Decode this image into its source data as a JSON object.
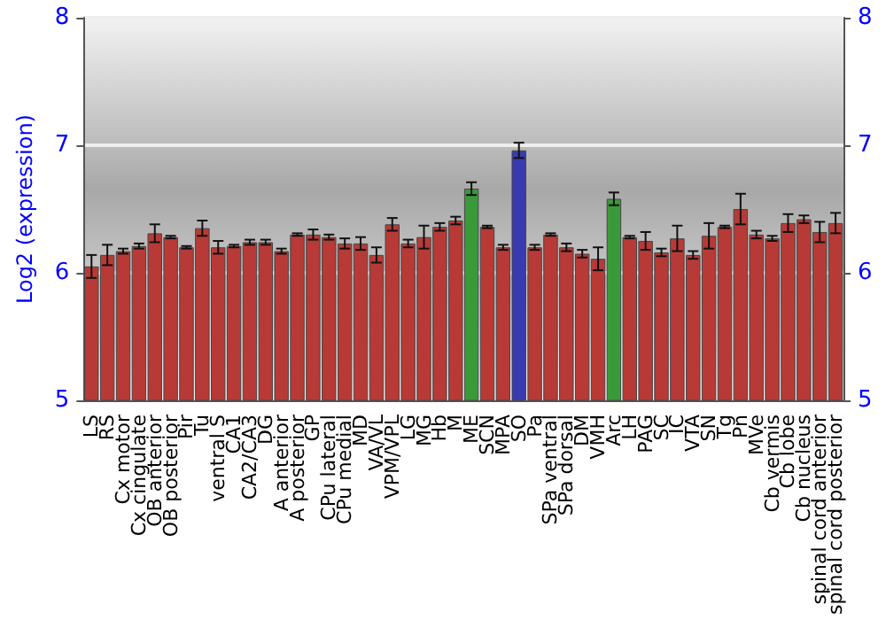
{
  "chart_data": {
    "type": "bar",
    "ylabel": "Log2 (expression)",
    "categories": [
      "LS",
      "RS",
      "Cx motor",
      "Cx cingulate",
      "OB anterior",
      "OB posterior",
      "Pir",
      "Tu",
      "ventral S",
      "CA1",
      "CA2/CA3",
      "DG",
      "A anterior",
      "A posterior",
      "GP",
      "CPu lateral",
      "CPu medial",
      "MD",
      "VA/VL",
      "VPM/VPL",
      "LG",
      "MG",
      "Hb",
      "M",
      "ME",
      "SCN",
      "MPA",
      "SO",
      "Pa",
      "SPa ventral",
      "SPa dorsal",
      "DM",
      "VMH",
      "Arc",
      "LH",
      "PAG",
      "SC",
      "IC",
      "VTA",
      "SN",
      "Tg",
      "Pn",
      "MVe",
      "Cb vermis",
      "Cb lobe",
      "Cb nucleus",
      "spinal cord anterior",
      "spinal cord posterior"
    ],
    "values": [
      6.05,
      6.14,
      6.17,
      6.21,
      6.31,
      6.28,
      6.2,
      6.35,
      6.2,
      6.21,
      6.24,
      6.24,
      6.17,
      6.3,
      6.3,
      6.28,
      6.23,
      6.23,
      6.14,
      6.38,
      6.23,
      6.28,
      6.36,
      6.41,
      6.66,
      6.36,
      6.2,
      6.96,
      6.2,
      6.3,
      6.2,
      6.15,
      6.11,
      6.58,
      6.28,
      6.25,
      6.16,
      6.27,
      6.14,
      6.29,
      6.36,
      6.5,
      6.3,
      6.27,
      6.39,
      6.42,
      6.32,
      6.39
    ],
    "errors": [
      0.09,
      0.08,
      0.02,
      0.02,
      0.07,
      0.01,
      0.01,
      0.06,
      0.05,
      0.01,
      0.02,
      0.02,
      0.02,
      0.01,
      0.04,
      0.02,
      0.04,
      0.05,
      0.06,
      0.05,
      0.03,
      0.09,
      0.03,
      0.03,
      0.05,
      0.01,
      0.02,
      0.06,
      0.02,
      0.01,
      0.03,
      0.03,
      0.09,
      0.05,
      0.01,
      0.07,
      0.03,
      0.1,
      0.03,
      0.1,
      0.01,
      0.12,
      0.03,
      0.02,
      0.07,
      0.03,
      0.08,
      0.08
    ],
    "colors": [
      "#b83a36",
      "#b83a36",
      "#b83a36",
      "#b83a36",
      "#b83a36",
      "#b83a36",
      "#b83a36",
      "#b83a36",
      "#b83a36",
      "#b83a36",
      "#b83a36",
      "#b83a36",
      "#b83a36",
      "#b83a36",
      "#b83a36",
      "#b83a36",
      "#b83a36",
      "#b83a36",
      "#b83a36",
      "#b83a36",
      "#b83a36",
      "#b83a36",
      "#b83a36",
      "#b83a36",
      "#3a9a3a",
      "#b83a36",
      "#b83a36",
      "#3a3ab0",
      "#b83a36",
      "#b83a36",
      "#b83a36",
      "#b83a36",
      "#b83a36",
      "#3a9a3a",
      "#b83a36",
      "#b83a36",
      "#b83a36",
      "#b83a36",
      "#b83a36",
      "#b83a36",
      "#b83a36",
      "#b83a36",
      "#b83a36",
      "#b83a36",
      "#b83a36",
      "#b83a36",
      "#b83a36",
      "#b83a36"
    ],
    "ylim": [
      5,
      8
    ],
    "yticks": [
      5,
      6,
      7,
      8
    ],
    "y2lim": [
      5,
      8
    ],
    "y2ticks": [
      5,
      6,
      7,
      8
    ],
    "grid": "y"
  }
}
